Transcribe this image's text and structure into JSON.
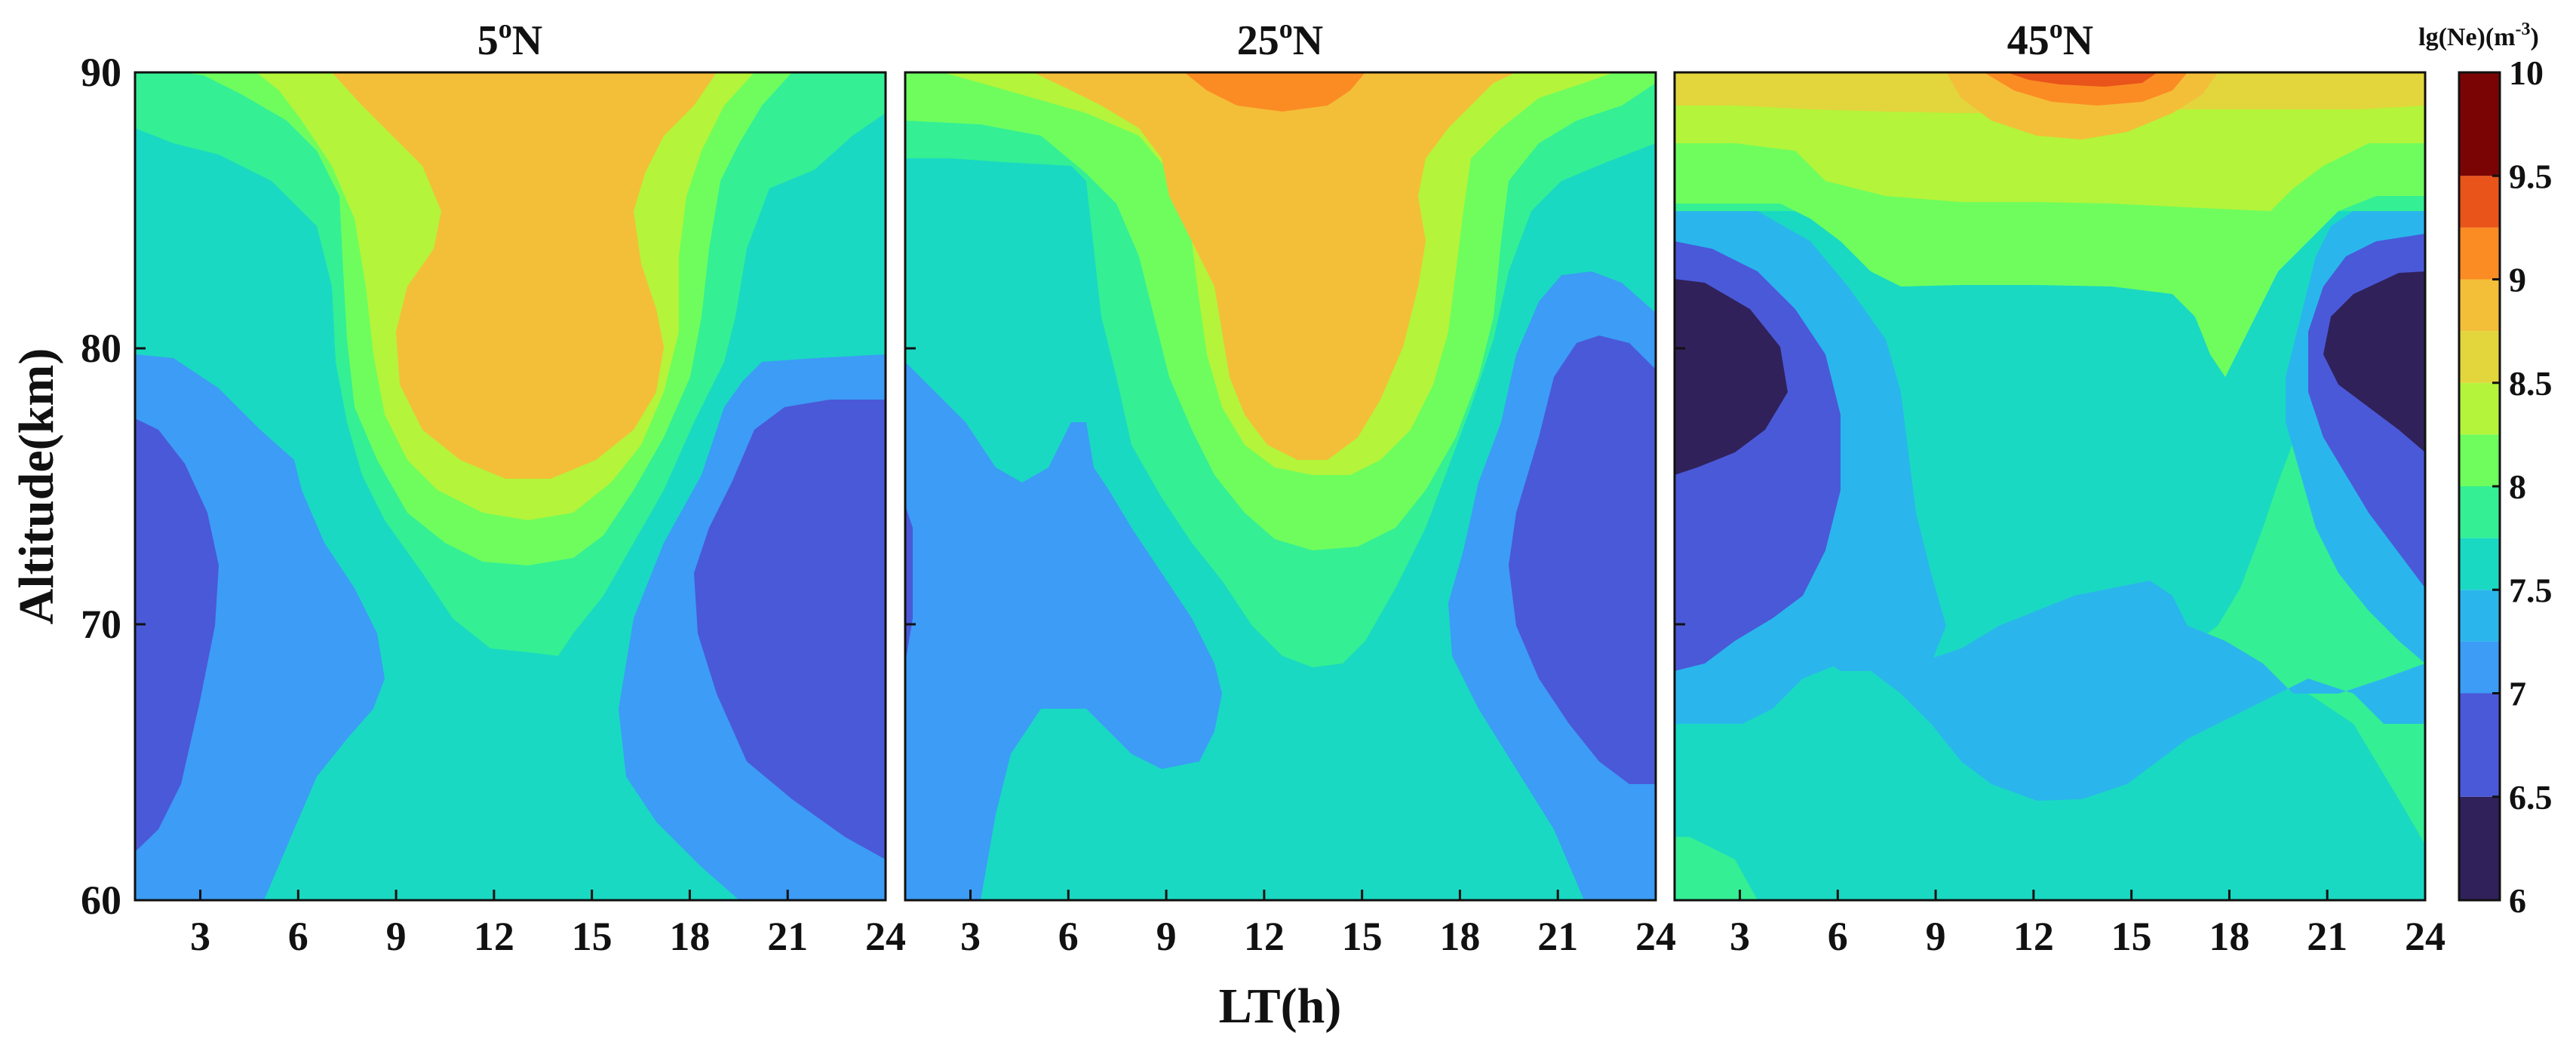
{
  "chart_data": {
    "type": "heatmap",
    "xlabel": "LT(h)",
    "ylabel": "Altitude(km)",
    "x_ticks": [
      3,
      6,
      9,
      12,
      15,
      18,
      21,
      24
    ],
    "y_ticks": [
      60,
      70,
      80,
      90
    ],
    "xlim": [
      1,
      24
    ],
    "ylim": [
      60,
      90
    ],
    "panels": [
      {
        "title_value": "5",
        "title_sup": "o",
        "title_suffix": "N"
      },
      {
        "title_value": "25",
        "title_sup": "o",
        "title_suffix": "N"
      },
      {
        "title_value": "45",
        "title_sup": "o",
        "title_suffix": "N"
      }
    ],
    "colorbar": {
      "label": "lg(Ne)(m",
      "label_sup": "-3",
      "label_end": ")",
      "min": 6,
      "max": 10,
      "ticks": [
        "6",
        "6.5",
        "7",
        "7.5",
        "8",
        "8.5",
        "9",
        "9.5",
        "10"
      ]
    },
    "level_colors": [
      {
        "min": 6.0,
        "max": 6.5,
        "color": "#30215a"
      },
      {
        "min": 6.5,
        "max": 7.0,
        "color": "#4a59d8"
      },
      {
        "min": 7.0,
        "max": 7.25,
        "color": "#3c9cf6"
      },
      {
        "min": 7.25,
        "max": 7.5,
        "color": "#2ab6ec"
      },
      {
        "min": 7.5,
        "max": 7.75,
        "color": "#1ad9c2"
      },
      {
        "min": 7.75,
        "max": 8.0,
        "color": "#34ef94"
      },
      {
        "min": 8.0,
        "max": 8.25,
        "color": "#6ffd5e"
      },
      {
        "min": 8.25,
        "max": 8.5,
        "color": "#b4f43a"
      },
      {
        "min": 8.5,
        "max": 8.75,
        "color": "#e2d63c"
      },
      {
        "min": 8.75,
        "max": 9.0,
        "color": "#f3bf38"
      },
      {
        "min": 9.0,
        "max": 9.25,
        "color": "#fb8c24"
      },
      {
        "min": 9.25,
        "max": 9.5,
        "color": "#e9541a"
      },
      {
        "min": 9.5,
        "max": 10.0,
        "color": "#7a0403"
      }
    ]
  }
}
